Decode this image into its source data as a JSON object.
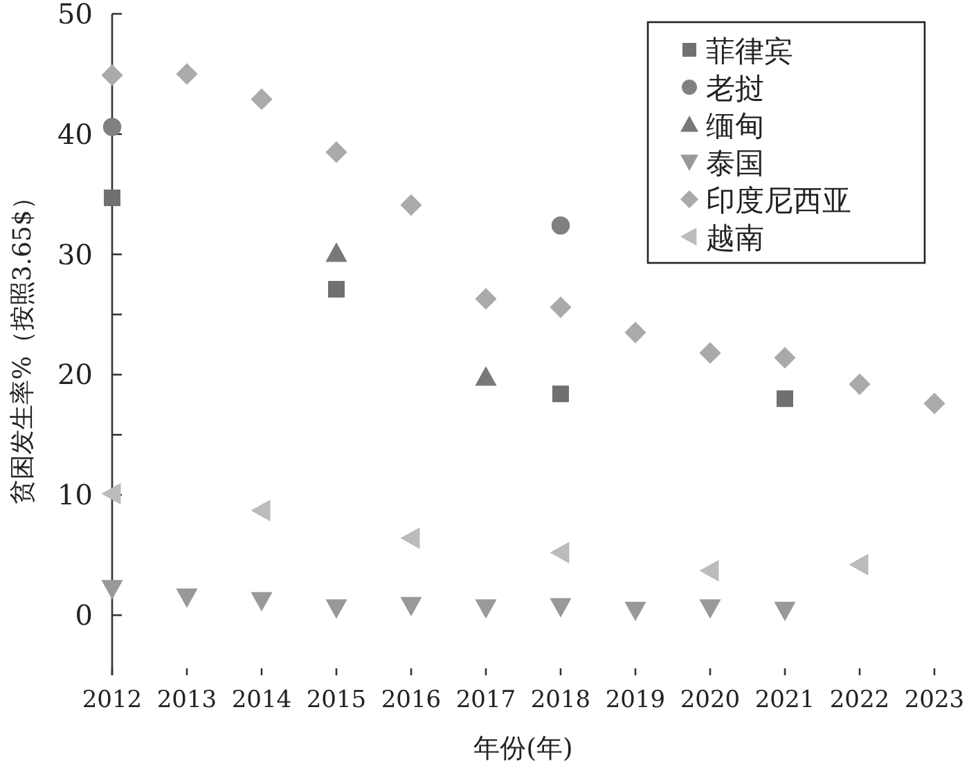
{
  "chart_data": {
    "type": "scatter",
    "xlabel": "年份(年)",
    "ylabel": "贫困发生率%（按照3.65$）",
    "xlim": [
      2012,
      2023
    ],
    "xticks": [
      2012,
      2013,
      2014,
      2015,
      2016,
      2017,
      2018,
      2019,
      2020,
      2021,
      2022,
      2023
    ],
    "ylim": [
      -5,
      50
    ],
    "yticks": [
      0,
      10,
      {
        "value": 15,
        "label": null
      },
      20,
      {
        "value": 25,
        "label": null
      },
      30,
      40,
      50
    ],
    "grid": false,
    "legend": "top right",
    "series": [
      {
        "name": "菲律宾",
        "color": "#707070",
        "marker": "square",
        "x": [
          2012,
          2015,
          2018,
          2021
        ],
        "values": [
          34.7,
          27.1,
          18.4,
          18.0
        ]
      },
      {
        "name": "老挝",
        "color": "#808080",
        "marker": "circle",
        "x": [
          2012,
          2018
        ],
        "values": [
          40.6,
          32.4
        ]
      },
      {
        "name": "缅甸",
        "color": "#787878",
        "marker": "triangle",
        "x": [
          2015,
          2017
        ],
        "values": [
          30.1,
          19.8
        ]
      },
      {
        "name": "泰国",
        "color": "#999999",
        "marker": "triangle-down",
        "x": [
          2012,
          2013,
          2014,
          2015,
          2016,
          2017,
          2018,
          2019,
          2020,
          2021
        ],
        "values": [
          2.2,
          1.5,
          1.2,
          0.6,
          0.8,
          0.6,
          0.7,
          0.4,
          0.6,
          0.4
        ]
      },
      {
        "name": "印度尼西亚",
        "color": "#aaaaaa",
        "marker": "diamond",
        "x": [
          2012,
          2013,
          2014,
          2015,
          2016,
          2017,
          2018,
          2019,
          2020,
          2021,
          2022,
          2023
        ],
        "values": [
          44.9,
          45.0,
          42.9,
          38.5,
          34.1,
          26.3,
          25.6,
          23.5,
          21.8,
          21.4,
          19.2,
          17.6
        ]
      },
      {
        "name": "越南",
        "color": "#bbbbbb",
        "marker": "triangle-left",
        "x": [
          2012,
          2014,
          2016,
          2018,
          2020,
          2022
        ],
        "values": [
          10.1,
          8.7,
          6.4,
          5.2,
          3.7,
          4.2
        ]
      }
    ]
  }
}
